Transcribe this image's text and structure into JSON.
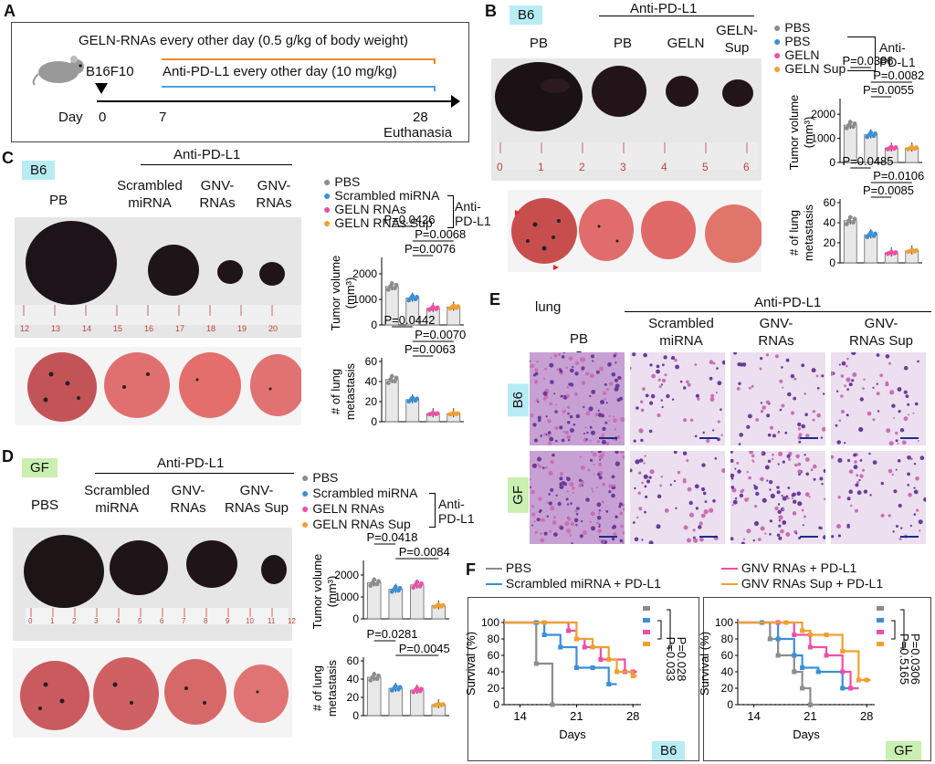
{
  "panelA": {
    "letter": "A",
    "line1": "GELN-RNAs every other day (0.5 g/kg of body weight)",
    "line2": "Anti-PD-L1 every other day (10 mg/kg)",
    "cell": "B16F10",
    "day": "Day",
    "d0": "0",
    "d7": "7",
    "d28": "28",
    "end": "Euthanasia"
  },
  "panelB": {
    "letter": "B",
    "tag": "B6",
    "group": "Anti-PD-L1",
    "conds": [
      "PB",
      "PB",
      "GELN",
      "GELN-\nSup"
    ],
    "legend": [
      "PBS",
      "PBS",
      "GELN",
      "GELN Sup"
    ],
    "legendGroup": "Anti-\nPD-L1",
    "ruler": [
      "0",
      "1",
      "2",
      "3",
      "4",
      "5",
      "6"
    ],
    "tv": {
      "ylabel": "Tumor volume\n(mm³)",
      "ticks": [
        "2000",
        "1000",
        "0"
      ],
      "p": [
        "P=0.0386",
        "P=0.0082",
        "P=0.0055"
      ]
    },
    "met": {
      "ylabel": "# of lung\nmetastasis",
      "ticks": [
        "60",
        "40",
        "20",
        "0"
      ],
      "p": [
        "P=0.0485",
        "P=0.0106",
        "P=0.0085"
      ]
    }
  },
  "panelC": {
    "letter": "C",
    "tag": "B6",
    "group": "Anti-PD-L1",
    "conds": [
      "PB",
      "Scrambled\nmiRNA",
      "GNV-\nRNAs",
      "GNV-\nRNAs"
    ],
    "legend": [
      "PBS",
      "Scrambled miRNA",
      "GELN RNAs",
      "GELN RNAs Sup"
    ],
    "legendGroup": "Anti-\nPD-L1",
    "ruler": [
      "12",
      "13",
      "14",
      "15",
      "16",
      "17",
      "18",
      "19",
      "20"
    ],
    "tv": {
      "ylabel": "Tumor volume\n(mm³)",
      "ticks": [
        "2000",
        "1000",
        "0"
      ],
      "p": [
        "P=0.0426",
        "P=0.0068",
        "P=0.0076"
      ]
    },
    "met": {
      "ylabel": "# of lung\nmetastasis",
      "ticks": [
        "60",
        "40",
        "20",
        "0"
      ],
      "p": [
        "P=0.0442",
        "P=0.0070",
        "P=0.0063"
      ]
    }
  },
  "panelD": {
    "letter": "D",
    "tag": "GF",
    "group": "Anti-PD-L1",
    "conds": [
      "PBS",
      "Scrambled\nmiRNA",
      "GNV-\nRNAs",
      "GNV-\nRNAs Sup"
    ],
    "legend": [
      "PBS",
      "Scrambled miRNA",
      "GELN RNAs",
      "GELN RNAs Sup"
    ],
    "legendGroup": "Anti-\nPD-L1",
    "ruler": [
      "0",
      "1",
      "2",
      "3",
      "4",
      "5",
      "6",
      "7",
      "8",
      "9",
      "10",
      "11",
      "12"
    ],
    "tv": {
      "ylabel": "Tumor volume\n(mm³)",
      "ticks": [
        "2000",
        "1000",
        "0"
      ],
      "p": [
        "P=0.0418",
        "P=0.0084"
      ]
    },
    "met": {
      "ylabel": "# of lung\nmetastasis",
      "ticks": [
        "60",
        "40",
        "20",
        "0"
      ],
      "p": [
        "P=0.0281",
        "P=0.0045"
      ]
    }
  },
  "panelE": {
    "letter": "E",
    "tissue": "lung",
    "group": "Anti-PD-L1",
    "conds": [
      "PB\nS",
      "Scrambled\nmiRNA",
      "GNV-\nRNAs",
      "GNV-\nRNAs Sup"
    ],
    "rows": [
      "B6",
      "GF"
    ]
  },
  "panelF": {
    "letter": "F",
    "legend": [
      "PBS",
      "Scrambled miRNA + PD-L1",
      "GNV RNAs + PD-L1",
      "GNV RNAs Sup + PD-L1"
    ],
    "ylabel": "Survival (%)",
    "xlabel": "Days",
    "yticks": [
      "100",
      "80",
      "60",
      "40",
      "20",
      "0"
    ],
    "xticks": [
      "14",
      "21",
      "28"
    ],
    "left": {
      "tag": "B6",
      "p1": "P=0.033",
      "p2": "P=0.028"
    },
    "right": {
      "tag": "GF",
      "p1": "P=0.5165",
      "p2": "P=0.0306"
    }
  },
  "colors": {
    "pbs": "#8c8c8c",
    "scr": "#3b8fd9",
    "geln": "#ef4fa6",
    "sup": "#f0a030",
    "tagCyan": "#b8ecf5",
    "tagGreen": "#c9efb1"
  },
  "chart_data": [
    {
      "type": "bar",
      "panel": "B",
      "title": "",
      "ylabel": "Tumor volume (mm³)",
      "categories": [
        "PBS",
        "PBS + Anti-PD-L1",
        "GELN + Anti-PD-L1",
        "GELN Sup + Anti-PD-L1"
      ],
      "values": [
        1550,
        1150,
        600,
        600
      ],
      "ylim": [
        0,
        2500
      ]
    },
    {
      "type": "bar",
      "panel": "B",
      "ylabel": "# of lung metastasis",
      "categories": [
        "PBS",
        "PBS + Anti-PD-L1",
        "GELN + Anti-PD-L1",
        "GELN Sup + Anti-PD-L1"
      ],
      "values": [
        42,
        28,
        10,
        12
      ],
      "ylim": [
        0,
        60
      ]
    },
    {
      "type": "bar",
      "panel": "C",
      "ylabel": "Tumor volume (mm³)",
      "categories": [
        "PBS",
        "Scrambled miRNA",
        "GELN RNAs",
        "GELN RNAs Sup"
      ],
      "values": [
        1500,
        1050,
        650,
        700
      ],
      "ylim": [
        0,
        2500
      ]
    },
    {
      "type": "bar",
      "panel": "C",
      "ylabel": "# of lung metastasis",
      "categories": [
        "PBS",
        "Scrambled miRNA",
        "GELN RNAs",
        "GELN RNAs Sup"
      ],
      "values": [
        42,
        22,
        8,
        8
      ],
      "ylim": [
        0,
        60
      ]
    },
    {
      "type": "bar",
      "panel": "D",
      "ylabel": "Tumor volume (mm³)",
      "categories": [
        "PBS",
        "Scrambled miRNA",
        "GELN RNAs",
        "GELN RNAs Sup"
      ],
      "values": [
        1650,
        1350,
        1550,
        600
      ],
      "ylim": [
        0,
        2500
      ]
    },
    {
      "type": "bar",
      "panel": "D",
      "ylabel": "# of lung metastasis",
      "categories": [
        "PBS",
        "Scrambled miRNA",
        "GELN RNAs",
        "GELN RNAs Sup"
      ],
      "values": [
        42,
        30,
        28,
        12
      ],
      "ylim": [
        0,
        60
      ]
    },
    {
      "type": "line",
      "panel": "F",
      "tag": "B6",
      "xlabel": "Days",
      "ylabel": "Survival (%)",
      "xlim": [
        12,
        29
      ],
      "ylim": [
        0,
        100
      ],
      "series": [
        {
          "name": "PBS",
          "x": [
            12,
            16,
            16,
            18
          ],
          "y": [
            100,
            100,
            50,
            0
          ]
        },
        {
          "name": "Scrambled miRNA + PD-L1",
          "x": [
            12,
            16,
            17,
            19,
            21,
            23,
            25
          ],
          "y": [
            100,
            100,
            85,
            70,
            45,
            45,
            25
          ]
        },
        {
          "name": "GNV RNAs + PD-L1",
          "x": [
            12,
            17,
            20,
            21,
            22,
            24,
            27,
            28
          ],
          "y": [
            100,
            100,
            90,
            80,
            70,
            55,
            40,
            40
          ]
        },
        {
          "name": "GNV RNAs Sup + PD-L1",
          "x": [
            12,
            17,
            21,
            23,
            25,
            26,
            28
          ],
          "y": [
            100,
            100,
            80,
            70,
            55,
            40,
            35
          ]
        }
      ]
    },
    {
      "type": "line",
      "panel": "F",
      "tag": "GF",
      "xlabel": "Days",
      "ylabel": "Survival (%)",
      "xlim": [
        12,
        29
      ],
      "ylim": [
        0,
        100
      ],
      "series": [
        {
          "name": "PBS",
          "x": [
            12,
            15,
            16,
            17,
            19,
            20,
            21
          ],
          "y": [
            100,
            100,
            80,
            60,
            40,
            20,
            0
          ]
        },
        {
          "name": "Scrambled miRNA + PD-L1",
          "x": [
            12,
            15,
            17,
            19,
            20,
            22,
            25,
            26
          ],
          "y": [
            100,
            100,
            80,
            60,
            45,
            40,
            20,
            20
          ]
        },
        {
          "name": "GNV RNAs + PD-L1",
          "x": [
            12,
            17,
            19,
            21,
            23,
            25,
            26
          ],
          "y": [
            100,
            100,
            85,
            70,
            60,
            40,
            20
          ]
        },
        {
          "name": "GNV RNAs Sup + PD-L1",
          "x": [
            12,
            18,
            20,
            21,
            23,
            25,
            27,
            28
          ],
          "y": [
            100,
            100,
            90,
            85,
            85,
            65,
            30,
            30
          ]
        }
      ]
    }
  ]
}
